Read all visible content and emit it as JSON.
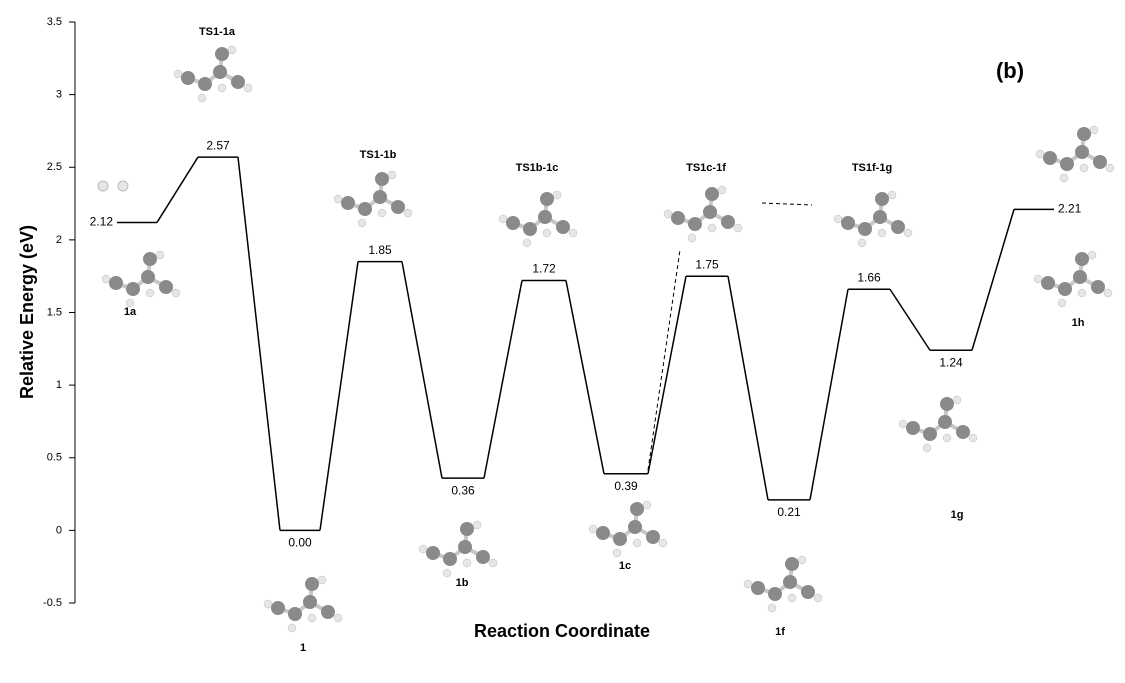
{
  "chart_data": {
    "type": "energy-profile",
    "x_label": "Reaction Coordinate",
    "y_label": "Relative Energy (eV)",
    "annotation": "(b)",
    "categories": [
      "1a",
      "TS1-1a",
      "1",
      "TS1-1b",
      "1b",
      "TS1b-1c",
      "1c",
      "TS1c-1f",
      "1f",
      "TS1f-1g",
      "1g",
      "1h"
    ],
    "values": [
      2.12,
      2.57,
      0,
      1.85,
      0.36,
      1.72,
      0.39,
      1.75,
      0.21,
      1.66,
      1.24,
      2.21
    ],
    "value_labels": [
      "2.12",
      "2.57",
      "0.00",
      "1.85",
      "0.36",
      "1.72",
      "0.39",
      "1.75",
      "0.21",
      "1.66",
      "1.24",
      "2.21"
    ],
    "color": "#000000",
    "ylim": [
      -0.5,
      3.5
    ],
    "yticks": [
      -0.5,
      0,
      0.5,
      1,
      1.5,
      2,
      2.5,
      3,
      3.5
    ]
  }
}
